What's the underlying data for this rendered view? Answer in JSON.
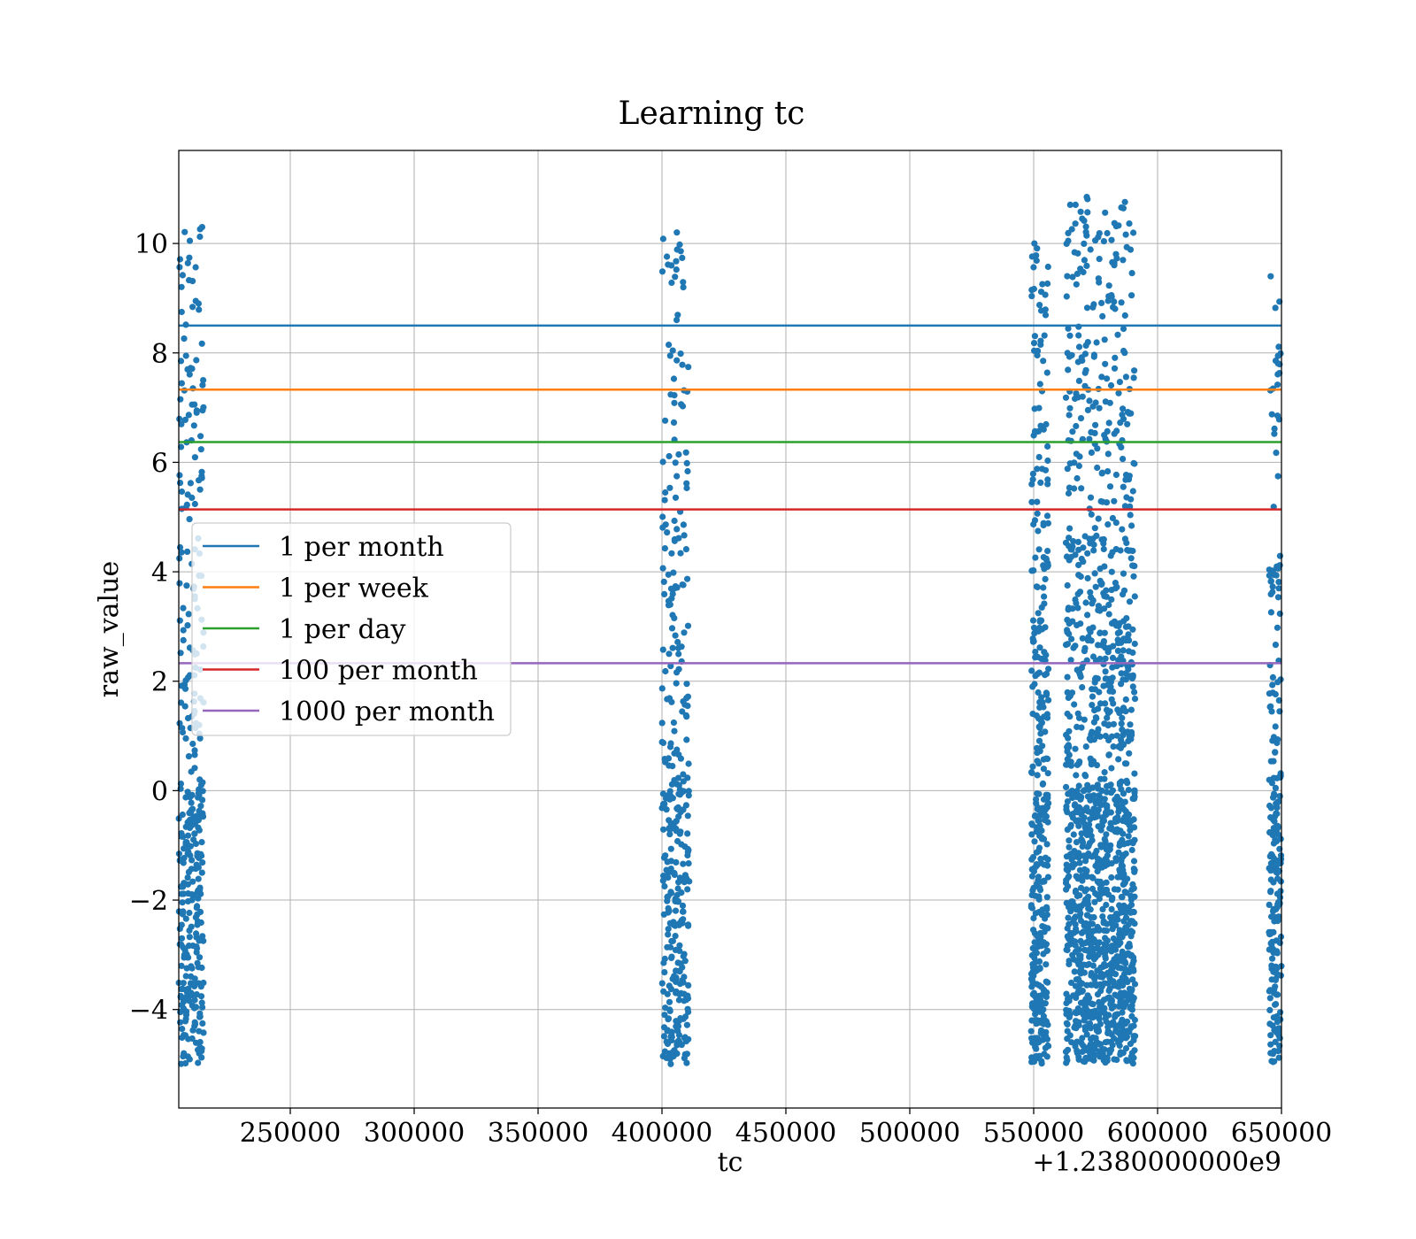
{
  "chart_data": {
    "type": "scatter",
    "title": "Learning tc",
    "xlabel": "tc",
    "ylabel": "raw_value",
    "x_offset_label": "+1.2380000000e9",
    "xlim": [
      205000,
      650000
    ],
    "ylim": [
      -5.8,
      11.7
    ],
    "x_ticks": [
      250000,
      300000,
      350000,
      400000,
      450000,
      500000,
      550000,
      600000,
      650000
    ],
    "x_tick_labels": [
      "250000",
      "300000",
      "350000",
      "400000",
      "450000",
      "500000",
      "550000",
      "600000",
      "650000"
    ],
    "y_ticks": [
      -4,
      -2,
      0,
      2,
      4,
      6,
      8,
      10
    ],
    "y_tick_labels": [
      "−4",
      "−2",
      "0",
      "2",
      "4",
      "6",
      "8",
      "10"
    ],
    "grid": true,
    "legend_position": "center-left",
    "scatter_color": "#1f77b4",
    "scatter_clusters": [
      {
        "x_range": [
          205000,
          215000
        ],
        "y_range": [
          -5,
          10.3
        ],
        "points": 360
      },
      {
        "x_range": [
          400000,
          411000
        ],
        "y_range": [
          -5,
          10.2
        ],
        "points": 360
      },
      {
        "x_range": [
          549000,
          556000
        ],
        "y_range": [
          -5,
          10
        ],
        "points": 380
      },
      {
        "x_range": [
          563000,
          591000
        ],
        "y_range": [
          -5,
          10.85
        ],
        "points": 1400
      },
      {
        "x_range": [
          645000,
          650000
        ],
        "y_range": [
          -5,
          9.4
        ],
        "points": 220
      }
    ],
    "series": [
      {
        "name": "1 per month",
        "y": 8.5,
        "color": "#1f77b4"
      },
      {
        "name": "1 per week",
        "y": 7.33,
        "color": "#ff7f0e"
      },
      {
        "name": "1 per day",
        "y": 6.37,
        "color": "#2ca02c"
      },
      {
        "name": "100 per month",
        "y": 5.14,
        "color": "#d62728"
      },
      {
        "name": "1000 per month",
        "y": 2.33,
        "color": "#9467bd"
      }
    ]
  }
}
